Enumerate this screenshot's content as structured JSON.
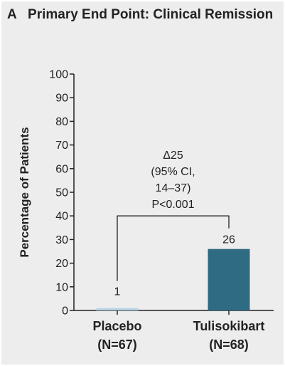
{
  "header": {
    "panel_letter": "A",
    "title": "Primary End Point: Clinical Remission"
  },
  "colors": {
    "background": "#ededed",
    "placebo_bar": "#b8d3e6",
    "tulisokibart_bar": "#2f6b82",
    "text": "#222222"
  },
  "chart_data": {
    "type": "bar",
    "title": "Primary End Point: Clinical Remission",
    "xlabel": "",
    "ylabel": "Percentage of Patients",
    "ylim": [
      0,
      100
    ],
    "yticks": [
      0,
      10,
      20,
      30,
      40,
      50,
      60,
      70,
      80,
      90,
      100
    ],
    "categories": [
      {
        "name": "Placebo",
        "n_label": "(N=67)"
      },
      {
        "name": "Tulisokibart",
        "n_label": "(N=68)"
      }
    ],
    "values": [
      1,
      26
    ],
    "value_labels": [
      "1",
      "26"
    ],
    "grid": false,
    "annotation": {
      "lines": [
        "Δ25",
        "(95% CI,",
        "14–37)",
        "P<0.001"
      ],
      "between": [
        "Placebo",
        "Tulisokibart"
      ]
    }
  }
}
